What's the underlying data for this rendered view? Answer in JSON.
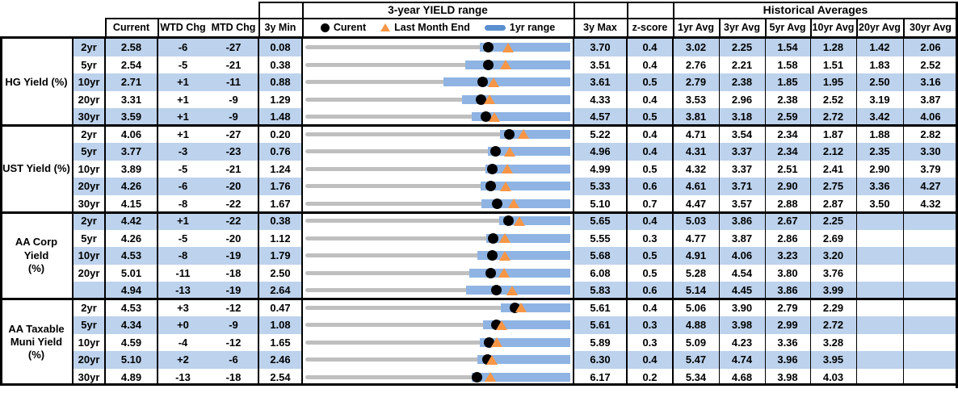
{
  "titles": {
    "range": "3-year YIELD range",
    "historical": "Historical Averages"
  },
  "columns": {
    "current": "Current",
    "wtd": "WTD Chg",
    "mtd": "MTD Chg",
    "min3y": "3y Min",
    "max3y": "3y Max",
    "zscore": "z-score",
    "averages": [
      "1yr Avg",
      "3yr Avg",
      "5yr Avg",
      "10yr Avg",
      "20yr Avg",
      "30yr Avg"
    ]
  },
  "legend": {
    "current": "Curent",
    "last_month_end": "Last Month End",
    "one_yr_range": "1yr range"
  },
  "colors": {
    "stripe": "#BDD2EC",
    "range_bar": "#8FB4E3",
    "track_gray": "#BFBFBF",
    "legend_swatch_blue": "#5B8FD0",
    "triangle_orange": "#F79646",
    "dot_black": "#000000"
  },
  "chart_data": {
    "type": "table",
    "embedded_chart": {
      "type": "range-bullet",
      "note": "Per row: gray track spans 3y Min to 3y Max; blue bar = 1yr range (upper end at 3y Max); black dot = Current; orange triangle = Last Month End (Current minus MTD change in bp)",
      "legend_position": "top of chart column"
    },
    "sections": [
      {
        "label_lines": [
          "HG Yield (%)"
        ],
        "rows": [
          {
            "tenor": "2yr",
            "current": "2.58",
            "wtd": "-6",
            "mtd": "-27",
            "min": "0.08",
            "max": "3.70",
            "z": "0.4",
            "avgs": [
              "3.02",
              "2.25",
              "1.54",
              "1.28",
              "1.42",
              "2.06"
            ],
            "yr1_min": 2.46
          },
          {
            "tenor": "5yr",
            "current": "2.54",
            "wtd": "-5",
            "mtd": "-21",
            "min": "0.38",
            "max": "3.51",
            "z": "0.4",
            "avgs": [
              "2.76",
              "2.21",
              "1.58",
              "1.51",
              "1.83",
              "2.52"
            ],
            "yr1_min": 2.27
          },
          {
            "tenor": "10yr",
            "current": "2.71",
            "wtd": "+1",
            "mtd": "-11",
            "min": "0.88",
            "max": "3.61",
            "z": "0.5",
            "avgs": [
              "2.79",
              "2.38",
              "1.85",
              "1.95",
              "2.50",
              "3.16"
            ],
            "yr1_min": 2.3
          },
          {
            "tenor": "20yr",
            "current": "3.31",
            "wtd": "+1",
            "mtd": "-9",
            "min": "1.29",
            "max": "4.33",
            "z": "0.4",
            "avgs": [
              "3.53",
              "2.96",
              "2.38",
              "2.52",
              "3.19",
              "3.87"
            ],
            "yr1_min": 3.09
          },
          {
            "tenor": "30yr",
            "current": "3.59",
            "wtd": "+1",
            "mtd": "-9",
            "min": "1.48",
            "max": "4.57",
            "z": "0.5",
            "avgs": [
              "3.81",
              "3.18",
              "2.59",
              "2.72",
              "3.42",
              "4.06"
            ],
            "yr1_min": 3.42
          }
        ]
      },
      {
        "label_lines": [
          "UST Yield (%)"
        ],
        "rows": [
          {
            "tenor": "2yr",
            "current": "4.06",
            "wtd": "+1",
            "mtd": "-27",
            "min": "0.20",
            "max": "5.22",
            "z": "0.4",
            "avgs": [
              "4.71",
              "3.54",
              "2.34",
              "1.87",
              "1.88",
              "2.82"
            ],
            "yr1_min": 3.89
          },
          {
            "tenor": "5yr",
            "current": "3.77",
            "wtd": "-3",
            "mtd": "-23",
            "min": "0.76",
            "max": "4.96",
            "z": "0.4",
            "avgs": [
              "4.31",
              "3.37",
              "2.34",
              "2.12",
              "2.35",
              "3.30"
            ],
            "yr1_min": 3.65
          },
          {
            "tenor": "10yr",
            "current": "3.89",
            "wtd": "-5",
            "mtd": "-21",
            "min": "1.24",
            "max": "4.99",
            "z": "0.5",
            "avgs": [
              "4.32",
              "3.37",
              "2.51",
              "2.41",
              "2.90",
              "3.79"
            ],
            "yr1_min": 3.79
          },
          {
            "tenor": "20yr",
            "current": "4.26",
            "wtd": "-6",
            "mtd": "-20",
            "min": "1.76",
            "max": "5.33",
            "z": "0.6",
            "avgs": [
              "4.61",
              "3.71",
              "2.90",
              "2.75",
              "3.36",
              "4.27"
            ],
            "yr1_min": 4.12
          },
          {
            "tenor": "30yr",
            "current": "4.15",
            "wtd": "-8",
            "mtd": "-22",
            "min": "1.67",
            "max": "5.10",
            "z": "0.7",
            "avgs": [
              "4.47",
              "3.57",
              "2.88",
              "2.87",
              "3.50",
              "4.32"
            ],
            "yr1_min": 3.95
          }
        ]
      },
      {
        "label_lines": [
          "AA Corp Yield",
          "(%)"
        ],
        "rows": [
          {
            "tenor": "2yr",
            "current": "4.42",
            "wtd": "+1",
            "mtd": "-22",
            "min": "0.38",
            "max": "5.65",
            "z": "0.4",
            "avgs": [
              "5.03",
              "3.86",
              "2.67",
              "2.25",
              "",
              ""
            ],
            "yr1_min": 4.23
          },
          {
            "tenor": "5yr",
            "current": "4.26",
            "wtd": "-5",
            "mtd": "-20",
            "min": "1.12",
            "max": "5.55",
            "z": "0.3",
            "avgs": [
              "4.77",
              "3.87",
              "2.86",
              "2.69",
              "",
              ""
            ],
            "yr1_min": 4.14
          },
          {
            "tenor": "10yr",
            "current": "4.53",
            "wtd": "-8",
            "mtd": "-19",
            "min": "1.79",
            "max": "5.68",
            "z": "0.5",
            "avgs": [
              "4.91",
              "4.06",
              "3.23",
              "3.20",
              "",
              ""
            ],
            "yr1_min": 4.32
          },
          {
            "tenor": "20yr",
            "current": "5.01",
            "wtd": "-11",
            "mtd": "-18",
            "min": "2.50",
            "max": "6.08",
            "z": "0.5",
            "avgs": [
              "5.28",
              "4.54",
              "3.80",
              "3.76",
              "",
              ""
            ],
            "yr1_min": 4.72
          },
          {
            "tenor": "",
            "current": "4.94",
            "wtd": "-13",
            "mtd": "-19",
            "min": "2.64",
            "max": "5.83",
            "z": "0.6",
            "avgs": [
              "5.14",
              "4.45",
              "3.86",
              "3.99",
              "",
              ""
            ],
            "yr1_min": 4.58
          }
        ]
      },
      {
        "label_lines": [
          "AA Taxable",
          "Muni Yield",
          "(%)"
        ],
        "rows": [
          {
            "tenor": "2yr",
            "current": "4.53",
            "wtd": "+3",
            "mtd": "-12",
            "min": "0.47",
            "max": "5.61",
            "z": "0.4",
            "avgs": [
              "5.06",
              "3.90",
              "2.79",
              "2.29",
              "",
              ""
            ],
            "yr1_min": 4.26
          },
          {
            "tenor": "5yr",
            "current": "4.34",
            "wtd": "+0",
            "mtd": "-9",
            "min": "1.08",
            "max": "5.61",
            "z": "0.3",
            "avgs": [
              "4.88",
              "3.98",
              "2.99",
              "2.72",
              "",
              ""
            ],
            "yr1_min": 4.12
          },
          {
            "tenor": "10yr",
            "current": "4.59",
            "wtd": "-4",
            "mtd": "-12",
            "min": "1.65",
            "max": "5.89",
            "z": "0.3",
            "avgs": [
              "5.09",
              "4.23",
              "3.36",
              "3.28",
              "",
              ""
            ],
            "yr1_min": 4.44
          },
          {
            "tenor": "20yr",
            "current": "5.10",
            "wtd": "+2",
            "mtd": "-6",
            "min": "2.46",
            "max": "6.30",
            "z": "0.4",
            "avgs": [
              "5.47",
              "4.74",
              "3.96",
              "3.95",
              "",
              ""
            ],
            "yr1_min": 4.95
          },
          {
            "tenor": "30yr",
            "current": "4.89",
            "wtd": "-13",
            "mtd": "-18",
            "min": "2.54",
            "max": "6.17",
            "z": "0.2",
            "avgs": [
              "5.34",
              "4.68",
              "3.98",
              "4.03",
              "",
              ""
            ],
            "yr1_min": 4.82
          }
        ]
      }
    ]
  }
}
